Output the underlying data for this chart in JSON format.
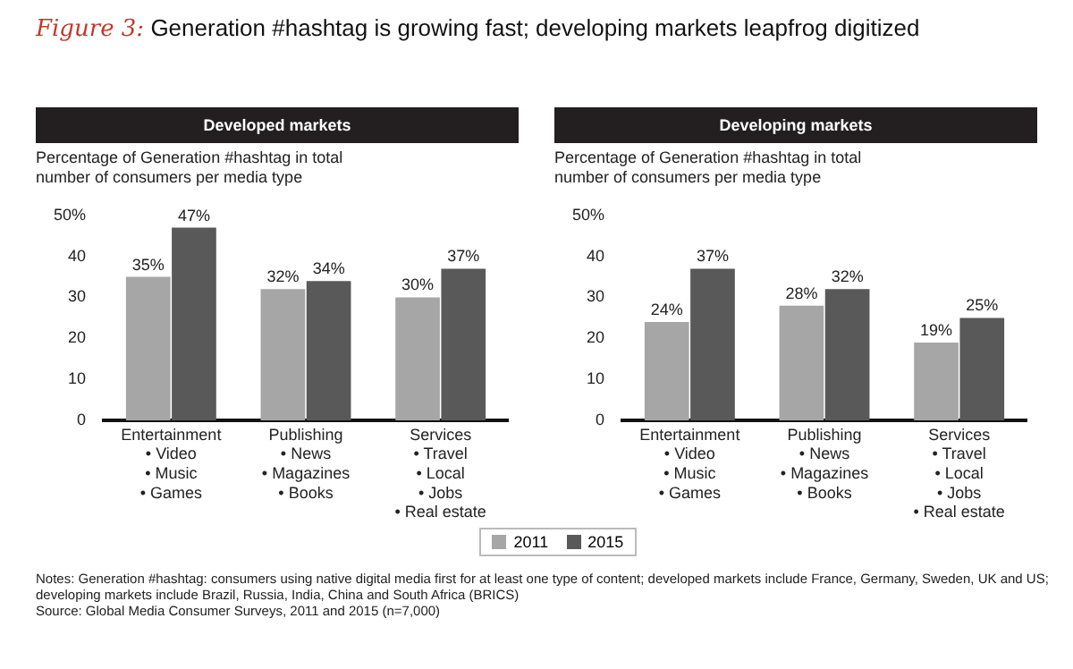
{
  "chart_data": [
    {
      "type": "other",
      "title": "Figure 3: Generation #hashtag is growing fast; developing markets leapfrog digitized",
      "annotations": [
        "Notes: Generation #hashtag: consumers using native digital media first for at least one type of content; developed markets include France, Germany, Sweden, UK and US; developing markets include Brazil, Russia, India, China and South Africa (BRICS)",
        "Source: Global Media Consumer Surveys, 2011 and 2015 (n=7,000)"
      ]
    },
    {
      "type": "bar",
      "title": "Developed markets",
      "ylabel": "Percentage of Generation #hashtag in total number of consumers per media type",
      "categories": [
        "Entertainment\n• Video\n• Music\n• Games",
        "Publishing\n• News\n• Magazines\n• Books",
        "Services\n• Travel\n• Local\n• Jobs\n• Real estate"
      ],
      "series": [
        {
          "name": "2011",
          "color": "#a6a6a6",
          "values": [
            35,
            32,
            30
          ],
          "value_labels": [
            "35%",
            "32%",
            "30%"
          ]
        },
        {
          "name": "2015",
          "color": "#595959",
          "values": [
            47,
            34,
            37
          ],
          "value_labels": [
            "47%",
            "34%",
            "37%"
          ]
        }
      ],
      "ylim": [
        0,
        50
      ],
      "yticks": [
        0,
        10,
        20,
        30,
        40,
        {
          "value": 50,
          "label": "50%"
        }
      ],
      "grid": false,
      "legend": "bottom"
    },
    {
      "type": "bar",
      "title": "Developing markets",
      "ylabel": "Percentage of Generation #hashtag in total number of consumers per media type",
      "categories": [
        "Entertainment\n• Video\n• Music\n• Games",
        "Publishing\n• News\n• Magazines\n• Books",
        "Services\n• Travel\n• Local\n• Jobs\n• Real estate"
      ],
      "series": [
        {
          "name": "2011",
          "color": "#a6a6a6",
          "values": [
            24,
            28,
            19
          ],
          "value_labels": [
            "24%",
            "28%",
            "19%"
          ]
        },
        {
          "name": "2015",
          "color": "#595959",
          "values": [
            37,
            32,
            25
          ],
          "value_labels": [
            "37%",
            "32%",
            "25%"
          ]
        }
      ],
      "ylim": [
        0,
        50
      ],
      "yticks": [
        0,
        10,
        20,
        30,
        40,
        {
          "value": 50,
          "label": "50%"
        }
      ],
      "grid": false,
      "legend": "bottom"
    }
  ]
}
